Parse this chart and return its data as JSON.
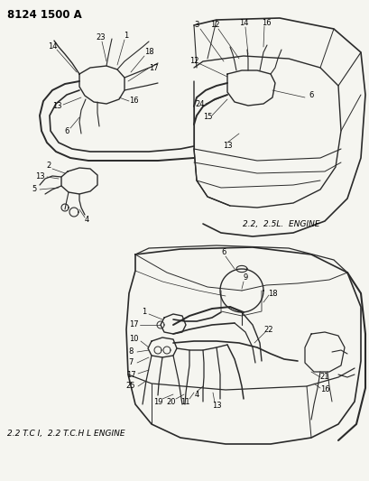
{
  "title": "8124 1500 A",
  "bg_color": "#f5f5f0",
  "line_color": "#2a2a2a",
  "text_color": "#000000",
  "engine1_label": "2.2,  2.5L.  ENGINE",
  "engine2_label": "2.2 T.C I,  2.2 T.C.H L ENGINE",
  "fig_width": 4.1,
  "fig_height": 5.33,
  "dpi": 100,
  "title_fontsize": 8.5,
  "label_fontsize": 6.0,
  "engine_label_fontsize": 6.5
}
